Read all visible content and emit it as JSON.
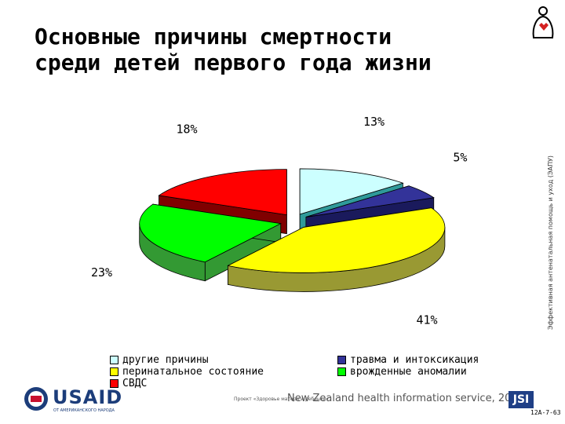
{
  "title_lines": [
    "Основные причины смертности",
    "среди детей первого года жизни"
  ],
  "side_text": "Эффективная антенатальная помощь и уход (ЭАПУ)",
  "chart_data": {
    "type": "pie",
    "slices": [
      {
        "label": "другие причины",
        "value": 13,
        "pct_label": "13%",
        "color": "#ccffff",
        "dark": "#2f9a9a"
      },
      {
        "label": "травма и интоксикация",
        "value": 5,
        "pct_label": "5%",
        "color": "#333399",
        "dark": "#1a1a5c"
      },
      {
        "label": "перинатальное состояние",
        "value": 41,
        "pct_label": "41%",
        "color": "#ffff00",
        "dark": "#999933"
      },
      {
        "label": "врожденные аномалии",
        "value": 23,
        "pct_label": "23%",
        "color": "#00ff00",
        "dark": "#339933"
      },
      {
        "label": "СВДС",
        "value": 18,
        "pct_label": "18%",
        "color": "#ff0000",
        "dark": "#800000"
      }
    ],
    "legend_placement": "bottom"
  },
  "legend": [
    {
      "label": "другие причины",
      "color": "#ccffff"
    },
    {
      "label": "перинатальное состояние",
      "color": "#ffff00"
    },
    {
      "label": "СВДС",
      "color": "#ff0000"
    },
    {
      "label": "травма и интоксикация",
      "color": "#333399"
    },
    {
      "label": "врожденные аномалии",
      "color": "#00ff00"
    }
  ],
  "footer": {
    "usaid": "USAID",
    "usaid_sub": "ОТ АМЕРИКАНСКОГО НАРОДА",
    "project": "Проект «Здоровье матери и ребенка»",
    "source": "New Zealand health information service, 2004",
    "jsi": "JSI",
    "slide_code": "12A-7-63"
  }
}
